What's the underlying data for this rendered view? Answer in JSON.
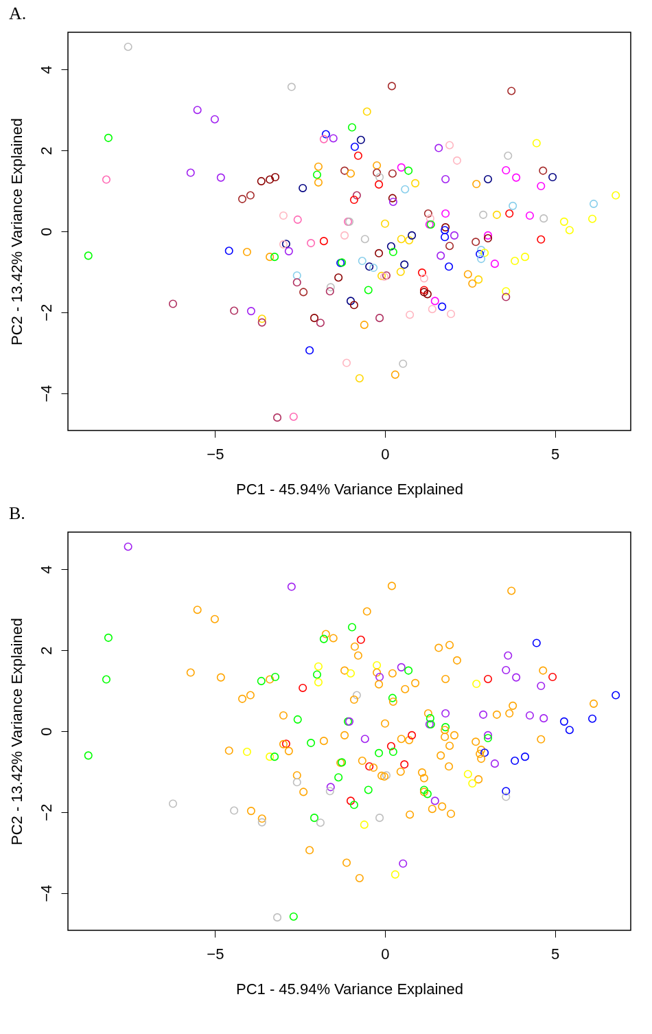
{
  "chart_data": [
    {
      "type": "scatter",
      "title": "A.",
      "xlabel": "PC1 - 45.94% Variance Explained",
      "ylabel": "PC2 - 13.42% Variance Explained",
      "xlim": [
        -9.33,
        7.23
      ],
      "ylim": [
        -4.92,
        4.92
      ],
      "xticks": [
        -5,
        0,
        5
      ],
      "yticks": [
        -4,
        -2,
        0,
        2,
        4
      ],
      "marker": "circle",
      "series": [
        {
          "x": [
            -7.56,
            -2.75,
            0.2,
            3.72,
            -0.53,
            -5.52,
            -5.01,
            -8.14,
            -0.97,
            -1.74,
            -1.8,
            -1.52,
            -0.71,
            -0.89,
            -0.79,
            1.58,
            1.9,
            2.12,
            4.46,
            3.62,
            -8.2,
            -5.72,
            -4.83,
            -3.64,
            -3.39,
            -3.23,
            -4.2,
            -3.96,
            -2.42,
            -1.96,
            -2.0,
            -1.96,
            -1.19,
            -1.01,
            -0.24,
            -0.24,
            -0.16,
            -0.18,
            0.22,
            0.48,
            0.69,
            0.89,
            0.59,
            -0.83,
            -0.91,
            0.22,
            0.24,
            -1.09,
            -1.05,
            0.0,
            1.27,
            1.33,
            1.31,
            1.35,
            1.78,
            1.78,
            1.76,
            1.76,
            2.04,
            2.67,
            3.03,
            3.03,
            4.59,
            2.89,
            3.29,
            3.66,
            3.76,
            4.26,
            4.67,
            5.27,
            5.43,
            6.1,
            6.14,
            6.79,
            2.69,
            3.03,
            3.56,
            3.86,
            4.65,
            4.93,
            4.59,
            1.78,
            -2.99,
            -2.57,
            -1.19,
            -1.8,
            -8.73,
            -4.59,
            -4.06,
            -3.39,
            -3.25,
            -2.91,
            -2.99,
            -2.83,
            -2.18,
            -1.31,
            -1.27,
            -2.59,
            -2.59,
            -2.4,
            -1.37,
            -1.6,
            -1.62,
            -1.01,
            -0.91,
            -6.24,
            -4.44,
            -3.94,
            -3.62,
            -3.62,
            -2.08,
            -1.9,
            -2.22,
            -1.13,
            -3.17,
            -2.69,
            -0.75,
            -0.59,
            0.48,
            0.71,
            0.79,
            0.18,
            0.24,
            -0.18,
            -0.67,
            -0.46,
            -0.34,
            0.57,
            0.46,
            -0.1,
            0.04,
            -0.02,
            -0.49,
            -0.16,
            -0.61,
            0.73,
            1.09,
            1.15,
            1.15,
            1.15,
            1.25,
            1.47,
            1.68,
            1.39,
            1.94,
            1.64,
            1.88,
            1.9,
            2.83,
            2.79,
            2.93,
            2.83,
            3.23,
            3.82,
            4.12,
            2.44,
            2.75,
            2.57,
            3.56,
            3.56,
            0.53,
            0.3
          ],
          "values": [
            4.56,
            3.57,
            3.59,
            3.47,
            2.96,
            3.0,
            2.77,
            2.31,
            2.57,
            2.4,
            2.28,
            2.3,
            2.26,
            2.09,
            1.87,
            2.06,
            2.13,
            1.75,
            2.18,
            1.87,
            1.28,
            1.45,
            1.33,
            1.24,
            1.28,
            1.34,
            0.8,
            0.89,
            1.07,
            1.6,
            1.4,
            1.21,
            1.5,
            1.43,
            1.63,
            1.45,
            1.34,
            1.16,
            1.43,
            1.58,
            1.5,
            1.19,
            1.04,
            0.89,
            0.78,
            0.82,
            0.73,
            0.24,
            0.24,
            0.19,
            0.44,
            0.32,
            0.17,
            0.17,
            0.44,
            0.1,
            0.03,
            -0.14,
            -0.1,
            -0.26,
            -0.1,
            -0.17,
            -0.2,
            0.41,
            0.41,
            0.44,
            0.63,
            0.39,
            0.32,
            0.24,
            0.03,
            0.31,
            0.68,
            0.89,
            1.17,
            1.29,
            1.51,
            1.33,
            1.5,
            1.34,
            1.12,
            1.29,
            0.39,
            0.29,
            -0.1,
            -0.24,
            -0.6,
            -0.48,
            -0.51,
            -0.63,
            -0.63,
            -0.31,
            -0.32,
            -0.49,
            -0.29,
            -0.78,
            -0.77,
            -1.09,
            -1.26,
            -1.5,
            -1.14,
            -1.38,
            -1.48,
            -1.72,
            -1.82,
            -1.79,
            -1.96,
            -1.97,
            -2.16,
            -2.25,
            -2.14,
            -2.26,
            -2.94,
            -3.25,
            -4.6,
            -4.58,
            -3.63,
            -0.19,
            -0.19,
            -0.22,
            -0.1,
            -0.37,
            -0.51,
            -0.54,
            -0.73,
            -0.87,
            -0.9,
            -0.82,
            -1.0,
            -1.1,
            -1.09,
            -1.12,
            -1.45,
            -2.14,
            -2.31,
            -2.06,
            -1.02,
            -1.16,
            -1.45,
            -1.5,
            -1.55,
            -1.72,
            -1.86,
            -1.92,
            -2.04,
            -0.6,
            -0.87,
            -0.36,
            -0.46,
            -0.56,
            -0.53,
            -0.68,
            -0.8,
            -0.73,
            -0.63,
            -1.06,
            -1.19,
            -1.29,
            -1.48,
            -1.62,
            -3.27,
            -3.54
          ],
          "colors": [
            "#bebebe",
            "#bebebe",
            "#a52a2a",
            "#a52a2a",
            "#ffd700",
            "#a020f0",
            "#a020f0",
            "#00ff00",
            "#00ff00",
            "#0000ff",
            "#ff69b4",
            "#a020f0",
            "#000080",
            "#0000ff",
            "#ff0000",
            "#a020f0",
            "#ffb6c1",
            "#ffb6c1",
            "#ffff00",
            "#bebebe",
            "#ff69b4",
            "#a020f0",
            "#a020f0",
            "#8b0000",
            "#8b0000",
            "#8b0000",
            "#a52a2a",
            "#a52a2a",
            "#000080",
            "#ffa500",
            "#00ff00",
            "#ffa500",
            "#a52a2a",
            "#ffa500",
            "#ffa500",
            "#a52a2a",
            "#bebebe",
            "#ff0000",
            "#a52a2a",
            "#ff00ff",
            "#00ff00",
            "#ffd700",
            "#87ceeb",
            "#b03060",
            "#ff0000",
            "#8b0000",
            "#a020f0",
            "#ff69b4",
            "#bebebe",
            "#ffd700",
            "#a52a2a",
            "#ffb6c1",
            "#ff00ff",
            "#00ff00",
            "#ff00ff",
            "#8b0000",
            "#0000ff",
            "#0000ff",
            "#a020f0",
            "#a52a2a",
            "#ff00ff",
            "#8b0000",
            "#ff0000",
            "#bebebe",
            "#ffd700",
            "#ff0000",
            "#87ceeb",
            "#ff00ff",
            "#bebebe",
            "#ffff00",
            "#ffff00",
            "#ffff00",
            "#87ceeb",
            "#ffff00",
            "#ffa500",
            "#000080",
            "#ff00ff",
            "#ff00ff",
            "#a52a2a",
            "#000080",
            "#ff00ff",
            "#a020f0",
            "#ffb6c1",
            "#ff69b4",
            "#ffb6c1",
            "#ff0000",
            "#00ff00",
            "#0000ff",
            "#ffa500",
            "#ffa500",
            "#00ff00",
            "#000080",
            "#ffb6c1",
            "#a020f0",
            "#ff69b4",
            "#0000ff",
            "#00ff00",
            "#87ceeb",
            "#b03060",
            "#a52a2a",
            "#8b0000",
            "#bebebe",
            "#b03060",
            "#000080",
            "#8b0000",
            "#b03060",
            "#b03060",
            "#a020f0",
            "#ffd700",
            "#b03060",
            "#8b0000",
            "#b03060",
            "#0000ff",
            "#ffb6c1",
            "#b03060",
            "#ff69b4",
            "#ffd700",
            "#bebebe",
            "#ffd700",
            "#ffd700",
            "#000080",
            "#000080",
            "#00ff00",
            "#8b0000",
            "#87ceeb",
            "#000080",
            "#87ceeb",
            "#000080",
            "#ffd700",
            "#ffd700",
            "#b03060",
            "#ffb6c1",
            "#00ff00",
            "#b03060",
            "#ffa500",
            "#ffb6c1",
            "#ff0000",
            "#ffb6c1",
            "#ff0000",
            "#8b0000",
            "#8b0000",
            "#ff00ff",
            "#0000ff",
            "#ffb6c1",
            "#ffb6c1",
            "#a020f0",
            "#0000ff",
            "#a52a2a",
            "#87ceeb",
            "#0000ff",
            "#ffff00",
            "#87ceeb",
            "#ff00ff",
            "#ffff00",
            "#ffff00",
            "#ffa500",
            "#ffd700",
            "#ffa500",
            "#ffff00",
            "#b03060",
            "#bebebe",
            "#ffa500"
          ]
        }
      ]
    },
    {
      "type": "scatter",
      "title": "B.",
      "xlabel": "PC1 - 45.94% Variance Explained",
      "ylabel": "PC2 - 13.42% Variance Explained",
      "xlim": [
        -9.33,
        7.23
      ],
      "ylim": [
        -4.92,
        4.92
      ],
      "xticks": [
        -5,
        0,
        5
      ],
      "yticks": [
        -4,
        -2,
        0,
        2,
        4
      ],
      "marker": "circle",
      "series": [
        {
          "x": [
            -7.56,
            -2.75,
            0.2,
            3.72,
            -0.53,
            -5.52,
            -5.01,
            -8.14,
            -0.97,
            -1.74,
            -1.8,
            -1.52,
            -0.71,
            -0.89,
            -0.79,
            1.58,
            1.9,
            2.12,
            4.46,
            3.62,
            -8.2,
            -5.72,
            -4.83,
            -3.64,
            -3.39,
            -3.23,
            -4.2,
            -3.96,
            -2.42,
            -1.96,
            -2.0,
            -1.96,
            -1.19,
            -1.01,
            -0.24,
            -0.24,
            -0.16,
            -0.18,
            0.22,
            0.48,
            0.69,
            0.89,
            0.59,
            -0.83,
            -0.91,
            0.22,
            0.24,
            -1.09,
            -1.05,
            0.0,
            1.27,
            1.33,
            1.31,
            1.35,
            1.78,
            1.78,
            1.76,
            1.76,
            2.04,
            2.67,
            3.03,
            3.03,
            4.59,
            2.89,
            3.29,
            3.66,
            3.76,
            4.26,
            4.67,
            5.27,
            5.43,
            6.1,
            6.14,
            6.79,
            2.69,
            3.03,
            3.56,
            3.86,
            4.65,
            4.93,
            4.59,
            1.78,
            -2.99,
            -2.57,
            -1.19,
            -1.8,
            -8.73,
            -4.59,
            -4.06,
            -3.39,
            -3.25,
            -2.91,
            -2.99,
            -2.83,
            -2.18,
            -1.31,
            -1.27,
            -2.59,
            -2.59,
            -2.4,
            -1.37,
            -1.6,
            -1.62,
            -1.01,
            -0.91,
            -6.24,
            -4.44,
            -3.94,
            -3.62,
            -3.62,
            -2.08,
            -1.9,
            -2.22,
            -1.13,
            -3.17,
            -2.69,
            -0.75,
            -0.59,
            0.48,
            0.71,
            0.79,
            0.18,
            0.24,
            -0.18,
            -0.67,
            -0.46,
            -0.34,
            0.57,
            0.46,
            -0.1,
            0.04,
            -0.02,
            -0.49,
            -0.16,
            -0.61,
            0.73,
            1.09,
            1.15,
            1.15,
            1.15,
            1.25,
            1.47,
            1.68,
            1.39,
            1.94,
            1.64,
            1.88,
            1.9,
            2.83,
            2.79,
            2.93,
            2.83,
            3.23,
            3.82,
            4.12,
            2.44,
            2.75,
            2.57,
            3.56,
            3.56,
            0.53,
            0.3
          ],
          "values": [
            4.56,
            3.57,
            3.59,
            3.47,
            2.96,
            3.0,
            2.77,
            2.31,
            2.57,
            2.4,
            2.28,
            2.3,
            2.26,
            2.09,
            1.87,
            2.06,
            2.13,
            1.75,
            2.18,
            1.87,
            1.28,
            1.45,
            1.33,
            1.24,
            1.28,
            1.34,
            0.8,
            0.89,
            1.07,
            1.6,
            1.4,
            1.21,
            1.5,
            1.43,
            1.63,
            1.45,
            1.34,
            1.16,
            1.43,
            1.58,
            1.5,
            1.19,
            1.04,
            0.89,
            0.78,
            0.82,
            0.73,
            0.24,
            0.24,
            0.19,
            0.44,
            0.32,
            0.17,
            0.17,
            0.44,
            0.1,
            0.03,
            -0.14,
            -0.1,
            -0.26,
            -0.1,
            -0.17,
            -0.2,
            0.41,
            0.41,
            0.44,
            0.63,
            0.39,
            0.32,
            0.24,
            0.03,
            0.31,
            0.68,
            0.89,
            1.17,
            1.29,
            1.51,
            1.33,
            1.5,
            1.34,
            1.12,
            1.29,
            0.39,
            0.29,
            -0.1,
            -0.24,
            -0.6,
            -0.48,
            -0.51,
            -0.63,
            -0.63,
            -0.31,
            -0.32,
            -0.49,
            -0.29,
            -0.78,
            -0.77,
            -1.09,
            -1.26,
            -1.5,
            -1.14,
            -1.38,
            -1.48,
            -1.72,
            -1.82,
            -1.79,
            -1.96,
            -1.97,
            -2.16,
            -2.25,
            -2.14,
            -2.26,
            -2.94,
            -3.25,
            -4.6,
            -4.58,
            -3.63,
            -0.19,
            -0.19,
            -0.22,
            -0.1,
            -0.37,
            -0.51,
            -0.54,
            -0.73,
            -0.87,
            -0.9,
            -0.82,
            -1.0,
            -1.1,
            -1.09,
            -1.12,
            -1.45,
            -2.14,
            -2.31,
            -2.06,
            -1.02,
            -1.16,
            -1.45,
            -1.5,
            -1.55,
            -1.72,
            -1.86,
            -1.92,
            -2.04,
            -0.6,
            -0.87,
            -0.36,
            -0.46,
            -0.56,
            -0.53,
            -0.68,
            -0.8,
            -0.73,
            -0.63,
            -1.06,
            -1.19,
            -1.29,
            -1.48,
            -1.62,
            -3.27,
            -3.54
          ],
          "colors": [
            "#a020f0",
            "#a020f0",
            "#ffa500",
            "#ffa500",
            "#ffa500",
            "#ffa500",
            "#ffa500",
            "#00ff00",
            "#00ff00",
            "#ffa500",
            "#00ff00",
            "#ffa500",
            "#ff0000",
            "#ffa500",
            "#ffa500",
            "#ffa500",
            "#ffa500",
            "#ffa500",
            "#0000ff",
            "#a020f0",
            "#00ff00",
            "#ffa500",
            "#ffa500",
            "#00ff00",
            "#ffa500",
            "#00ff00",
            "#ffa500",
            "#ffa500",
            "#ff0000",
            "#ffff00",
            "#00ff00",
            "#ffff00",
            "#ffa500",
            "#ffff00",
            "#ffff00",
            "#ffa500",
            "#a020f0",
            "#ffa500",
            "#ffa500",
            "#a020f0",
            "#00ff00",
            "#ffa500",
            "#ffa500",
            "#bebebe",
            "#ffa500",
            "#00ff00",
            "#ffa500",
            "#00ff00",
            "#a020f0",
            "#ffa500",
            "#ffa500",
            "#00ff00",
            "#a020f0",
            "#00ff00",
            "#a020f0",
            "#00ff00",
            "#ffa500",
            "#ffa500",
            "#ffa500",
            "#ffa500",
            "#a020f0",
            "#00ff00",
            "#ffa500",
            "#a020f0",
            "#ffa500",
            "#ffa500",
            "#ffa500",
            "#a020f0",
            "#a020f0",
            "#0000ff",
            "#0000ff",
            "#0000ff",
            "#ffa500",
            "#0000ff",
            "#ffff00",
            "#ff0000",
            "#a020f0",
            "#a020f0",
            "#ffa500",
            "#ff0000",
            "#a020f0",
            "#ffa500",
            "#ffa500",
            "#00ff00",
            "#ffa500",
            "#ffa500",
            "#00ff00",
            "#ffa500",
            "#ffff00",
            "#ffff00",
            "#00ff00",
            "#ff0000",
            "#ffa500",
            "#ffa500",
            "#00ff00",
            "#ffa500",
            "#00ff00",
            "#ffa500",
            "#bebebe",
            "#ffa500",
            "#00ff00",
            "#a020f0",
            "#bebebe",
            "#ff0000",
            "#00ff00",
            "#bebebe",
            "#bebebe",
            "#ffa500",
            "#ffa500",
            "#bebebe",
            "#00ff00",
            "#bebebe",
            "#ffa500",
            "#ffa500",
            "#bebebe",
            "#00ff00",
            "#ffa500",
            "#a020f0",
            "#ffa500",
            "#ffa500",
            "#ff0000",
            "#ff0000",
            "#00ff00",
            "#00ff00",
            "#ffa500",
            "#ff0000",
            "#ffa500",
            "#ff0000",
            "#ffa500",
            "#ffa500",
            "#bebebe",
            "#ffa500",
            "#00ff00",
            "#bebebe",
            "#ffff00",
            "#ffa500",
            "#ffa500",
            "#ffa500",
            "#00ff00",
            "#ffa500",
            "#00ff00",
            "#a020f0",
            "#ffa500",
            "#ffa500",
            "#ffa500",
            "#ffa500",
            "#ffa500",
            "#ffa500",
            "#ffa500",
            "#ffa500",
            "#0000ff",
            "#ffa500",
            "#a020f0",
            "#0000ff",
            "#0000ff",
            "#ffff00",
            "#ffa500",
            "#ffff00",
            "#0000ff",
            "#bebebe",
            "#a020f0",
            "#ffff00"
          ]
        }
      ]
    }
  ]
}
